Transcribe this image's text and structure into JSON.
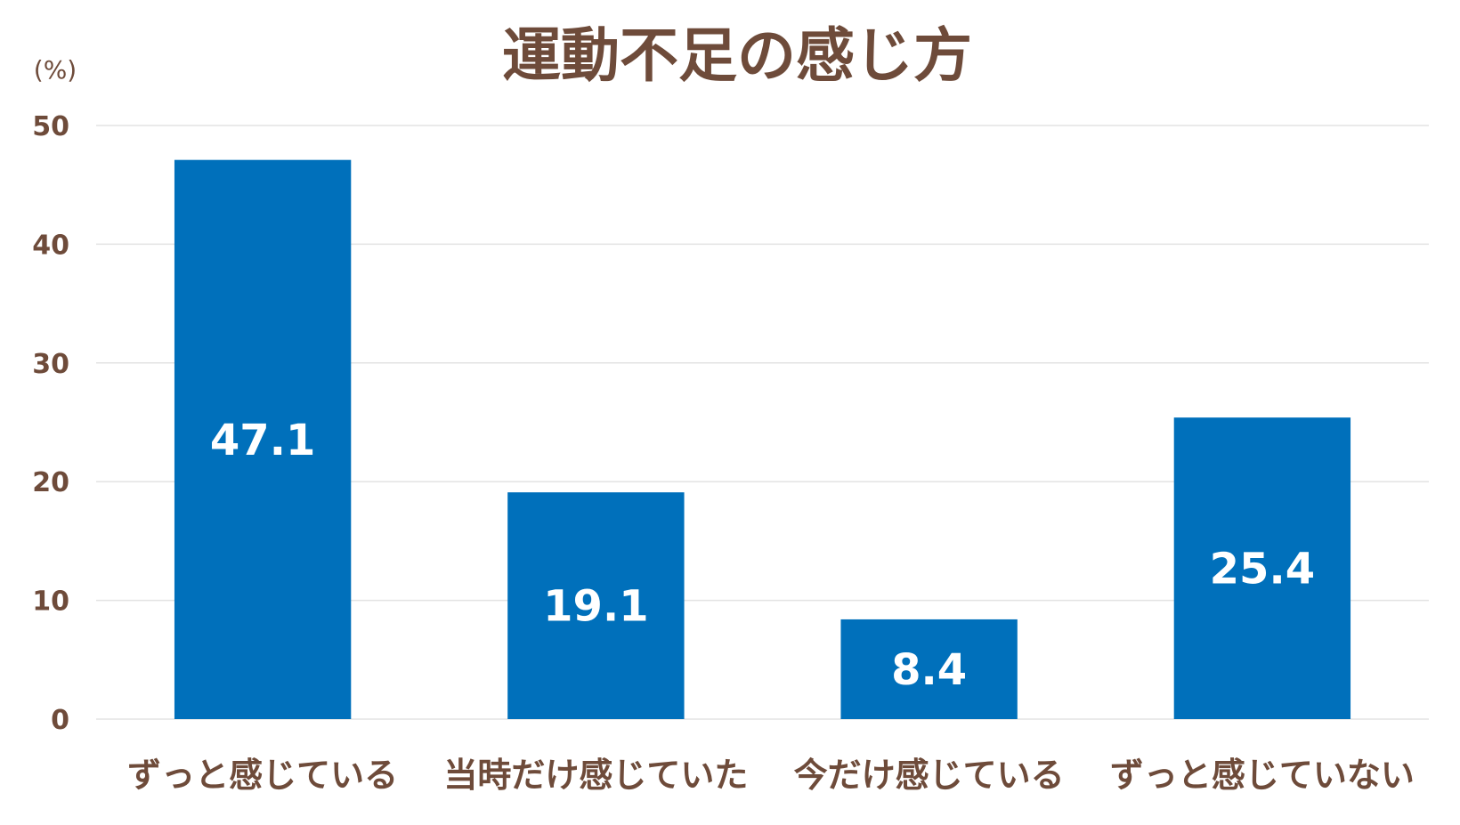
{
  "chart_data": {
    "type": "bar",
    "title": "運動不足の感じ方",
    "unit_label": "(%)",
    "categories": [
      "ずっと感じている",
      "当時だけ感じていた",
      "今だけ感じている",
      "ずっと感じていない"
    ],
    "values": [
      47.1,
      19.1,
      8.4,
      25.4
    ],
    "value_labels": [
      "47.1",
      "19.1",
      "8.4",
      "25.4"
    ],
    "y_ticks": [
      "0",
      "10",
      "20",
      "30",
      "40",
      "50"
    ],
    "ylim": [
      0,
      50
    ],
    "grid": true,
    "legend": "none",
    "colors": {
      "bar": "#0070BB",
      "text": "#6E4B3A",
      "value_label": "#FFFFFF",
      "grid": "#E3E3E3"
    }
  }
}
